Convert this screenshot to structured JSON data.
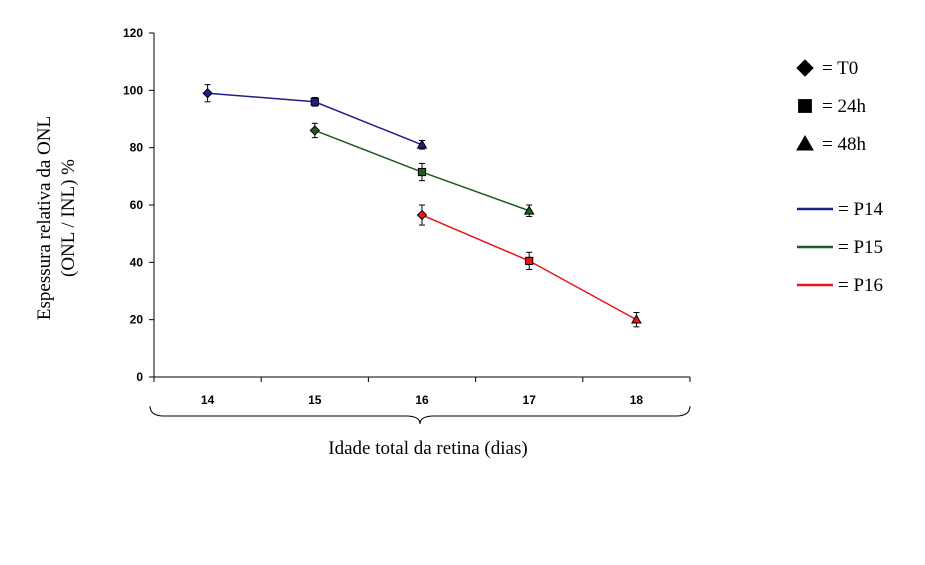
{
  "chart_data": {
    "type": "line",
    "ylabel_line1": "Espessura relativa da ONL",
    "ylabel_line2": "(ONL / INL) %",
    "xlabel": "Idade total da retina (dias)",
    "categories": [
      "14",
      "15",
      "16",
      "17",
      "18"
    ],
    "ylim": [
      0,
      120
    ],
    "yticks": [
      "0",
      "20",
      "40",
      "60",
      "80",
      "100",
      "120"
    ],
    "grid": false,
    "legend_position": "right",
    "series": [
      {
        "name": "P14",
        "color": "#1f1f8c",
        "points": [
          {
            "x": "14",
            "y": 99,
            "err": 3,
            "marker": "diamond"
          },
          {
            "x": "15",
            "y": 96,
            "err": 1.5,
            "marker": "square"
          },
          {
            "x": "16",
            "y": 81,
            "err": 1.5,
            "marker": "triangle"
          }
        ]
      },
      {
        "name": "P15",
        "color": "#1f5c1f",
        "points": [
          {
            "x": "15",
            "y": 86,
            "err": 2.5,
            "marker": "diamond"
          },
          {
            "x": "16",
            "y": 71.5,
            "err": 3,
            "marker": "square"
          },
          {
            "x": "17",
            "y": 58,
            "err": 2,
            "marker": "triangle"
          }
        ]
      },
      {
        "name": "P16",
        "color": "#e8141a",
        "points": [
          {
            "x": "16",
            "y": 56.5,
            "err": 3.5,
            "marker": "diamond"
          },
          {
            "x": "17",
            "y": 40.5,
            "err": 3,
            "marker": "square"
          },
          {
            "x": "18",
            "y": 20,
            "err": 2.5,
            "marker": "triangle"
          }
        ]
      }
    ],
    "legend_markers": [
      {
        "marker": "diamond",
        "label": "= T0"
      },
      {
        "marker": "square",
        "label": "= 24h"
      },
      {
        "marker": "triangle",
        "label": "= 48h"
      }
    ],
    "legend_lines": [
      {
        "color": "#1f1f8c",
        "label": "= P14"
      },
      {
        "color": "#1f5c1f",
        "label": "= P15"
      },
      {
        "color": "#e8141a",
        "label": "= P16"
      }
    ]
  }
}
